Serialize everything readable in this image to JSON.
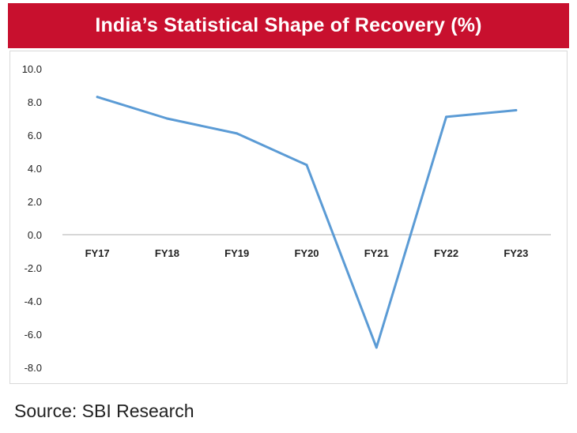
{
  "title": "India’s Statistical Shape of Recovery (%)",
  "source": "Source: SBI Research",
  "colors": {
    "title_bg": "#c8102e",
    "line": "#5b9bd5",
    "axis": "#bfbfbf"
  },
  "chart_data": {
    "type": "line",
    "categories": [
      "FY17",
      "FY18",
      "FY19",
      "FY20",
      "FY21",
      "FY22",
      "FY23"
    ],
    "series": [
      {
        "values": [
          8.3,
          7.0,
          6.1,
          4.2,
          -6.8,
          7.1,
          7.5
        ]
      }
    ],
    "ylim": [
      -8.0,
      10.0
    ],
    "yticks": [
      "10.0",
      "8.0",
      "6.0",
      "4.0",
      "2.0",
      "0.0",
      "-2.0",
      "-4.0",
      "-6.0",
      "-8.0"
    ],
    "grid": false,
    "legend": "none"
  }
}
